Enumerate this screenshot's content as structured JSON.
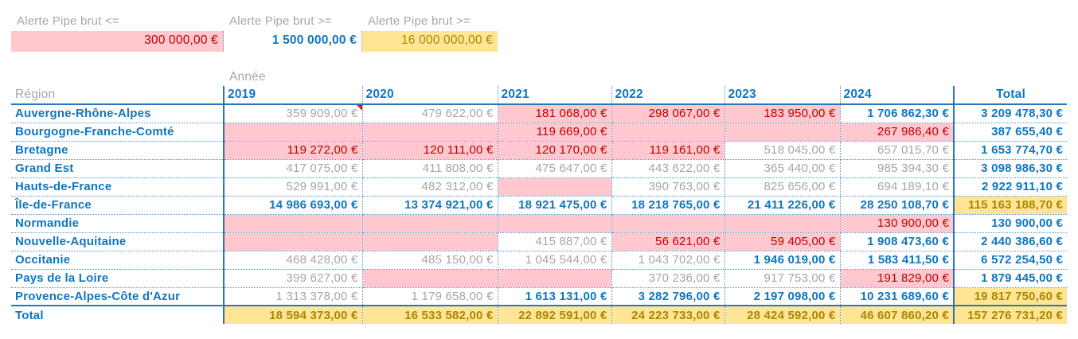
{
  "alerts": [
    {
      "label": "Alerte Pipe brut <=",
      "value": "300 000,00 €"
    },
    {
      "label": "Alerte Pipe brut >=",
      "value": "1 500 000,00 €"
    },
    {
      "label": "Alerte Pipe brut >=",
      "value": "16 000 000,00 €"
    }
  ],
  "table": {
    "group_header": "Année",
    "corner_header": "Région",
    "year_columns": [
      "2019",
      "2020",
      "2021",
      "2022",
      "2023",
      "2024"
    ],
    "total_column": "Total",
    "rows": [
      {
        "region": "Auvergne-Rhône-Alpes",
        "cells": [
          {
            "v": "359 909,00 €",
            "s": "normal",
            "comment": true
          },
          {
            "v": "479 622,00 €",
            "s": "normal"
          },
          {
            "v": "181 068,00 €",
            "s": "bad"
          },
          {
            "v": "298 067,00 €",
            "s": "bad"
          },
          {
            "v": "183 950,00 €",
            "s": "bad"
          },
          {
            "v": "1 706 862,30 €",
            "s": "strong"
          }
        ],
        "total": {
          "v": "3 209 478,30 €",
          "s": "strong"
        }
      },
      {
        "region": "Bourgogne-Franche-Comté",
        "cells": [
          {
            "v": "",
            "s": "bad"
          },
          {
            "v": "",
            "s": "bad"
          },
          {
            "v": "119 669,00 €",
            "s": "bad"
          },
          {
            "v": "",
            "s": "bad"
          },
          {
            "v": "",
            "s": "bad"
          },
          {
            "v": "267 986,40 €",
            "s": "bad"
          }
        ],
        "total": {
          "v": "387 655,40 €",
          "s": "strong"
        }
      },
      {
        "region": "Bretagne",
        "cells": [
          {
            "v": "119 272,00 €",
            "s": "bad"
          },
          {
            "v": "120 111,00 €",
            "s": "bad"
          },
          {
            "v": "120 170,00 €",
            "s": "bad"
          },
          {
            "v": "119 161,00 €",
            "s": "bad"
          },
          {
            "v": "518 045,00 €",
            "s": "normal"
          },
          {
            "v": "657 015,70 €",
            "s": "normal"
          }
        ],
        "total": {
          "v": "1 653 774,70 €",
          "s": "strong"
        }
      },
      {
        "region": "Grand Est",
        "cells": [
          {
            "v": "417 075,00 €",
            "s": "normal"
          },
          {
            "v": "411 808,00 €",
            "s": "normal"
          },
          {
            "v": "475 647,00 €",
            "s": "normal"
          },
          {
            "v": "443 622,00 €",
            "s": "normal"
          },
          {
            "v": "365 440,00 €",
            "s": "normal"
          },
          {
            "v": "985 394,30 €",
            "s": "normal"
          }
        ],
        "total": {
          "v": "3 098 986,30 €",
          "s": "strong"
        }
      },
      {
        "region": "Hauts-de-France",
        "cells": [
          {
            "v": "529 991,00 €",
            "s": "normal"
          },
          {
            "v": "482 312,00 €",
            "s": "normal"
          },
          {
            "v": "",
            "s": "bad"
          },
          {
            "v": "390 763,00 €",
            "s": "normal"
          },
          {
            "v": "825 656,00 €",
            "s": "normal"
          },
          {
            "v": "694 189,10 €",
            "s": "normal"
          }
        ],
        "total": {
          "v": "2 922 911,10 €",
          "s": "strong"
        }
      },
      {
        "region": "Île-de-France",
        "cells": [
          {
            "v": "14 986 693,00 €",
            "s": "strong"
          },
          {
            "v": "13 374 921,00 €",
            "s": "strong"
          },
          {
            "v": "18 921 475,00 €",
            "s": "strong"
          },
          {
            "v": "18 218 765,00 €",
            "s": "strong"
          },
          {
            "v": "21 411 226,00 €",
            "s": "strong"
          },
          {
            "v": "28 250 108,70 €",
            "s": "strong"
          }
        ],
        "total": {
          "v": "115 163 188,70 €",
          "s": "peak"
        }
      },
      {
        "region": "Normandie",
        "cells": [
          {
            "v": "",
            "s": "bad"
          },
          {
            "v": "",
            "s": "bad"
          },
          {
            "v": "",
            "s": "bad"
          },
          {
            "v": "",
            "s": "bad"
          },
          {
            "v": "",
            "s": "bad"
          },
          {
            "v": "130 900,00 €",
            "s": "bad"
          }
        ],
        "total": {
          "v": "130 900,00 €",
          "s": "strong"
        }
      },
      {
        "region": "Nouvelle-Aquitaine",
        "cells": [
          {
            "v": "",
            "s": "bad"
          },
          {
            "v": "",
            "s": "bad"
          },
          {
            "v": "415 887,00 €",
            "s": "normal"
          },
          {
            "v": "56 621,00 €",
            "s": "bad"
          },
          {
            "v": "59 405,00 €",
            "s": "bad"
          },
          {
            "v": "1 908 473,60 €",
            "s": "strong"
          }
        ],
        "total": {
          "v": "2 440 386,60 €",
          "s": "strong"
        }
      },
      {
        "region": "Occitanie",
        "cells": [
          {
            "v": "468 428,00 €",
            "s": "normal"
          },
          {
            "v": "485 150,00 €",
            "s": "normal"
          },
          {
            "v": "1 045 544,00 €",
            "s": "normal"
          },
          {
            "v": "1 043 702,00 €",
            "s": "normal"
          },
          {
            "v": "1 946 019,00 €",
            "s": "strong"
          },
          {
            "v": "1 583 411,50 €",
            "s": "strong"
          }
        ],
        "total": {
          "v": "6 572 254,50 €",
          "s": "strong"
        }
      },
      {
        "region": "Pays de la Loire",
        "cells": [
          {
            "v": "399 627,00 €",
            "s": "normal"
          },
          {
            "v": "",
            "s": "bad"
          },
          {
            "v": "",
            "s": "bad"
          },
          {
            "v": "370 236,00 €",
            "s": "normal"
          },
          {
            "v": "917 753,00 €",
            "s": "normal"
          },
          {
            "v": "191 829,00 €",
            "s": "bad"
          }
        ],
        "total": {
          "v": "1 879 445,00 €",
          "s": "strong"
        }
      },
      {
        "region": "Provence-Alpes-Côte d'Azur",
        "cells": [
          {
            "v": "1 313 378,00 €",
            "s": "normal"
          },
          {
            "v": "1 179 658,00 €",
            "s": "normal"
          },
          {
            "v": "1 613 131,00 €",
            "s": "strong"
          },
          {
            "v": "3 282 796,00 €",
            "s": "strong"
          },
          {
            "v": "2 197 098,00 €",
            "s": "strong"
          },
          {
            "v": "10 231 689,60 €",
            "s": "strong"
          }
        ],
        "total": {
          "v": "19 817 750,60 €",
          "s": "peak"
        }
      }
    ],
    "total_row": {
      "label": "Total",
      "cells": [
        {
          "v": "18 594 373,00 €",
          "s": "peak"
        },
        {
          "v": "16 533 582,00 €",
          "s": "peak"
        },
        {
          "v": "22 892 591,00 €",
          "s": "peak"
        },
        {
          "v": "24 223 733,00 €",
          "s": "peak"
        },
        {
          "v": "28 424 592,00 €",
          "s": "peak"
        },
        {
          "v": "46 607 860,20 €",
          "s": "peak"
        }
      ],
      "total": {
        "v": "157 276 731,20 €",
        "s": "peak"
      }
    }
  },
  "colors": {
    "accent_blue": "#0F76C0",
    "muted_gray": "#A6A6A6",
    "alert_low_bg": "#FFC7CE",
    "alert_low_text": "#C00000",
    "alert_high_bg": "#FFE594",
    "alert_high_text": "#AC8600",
    "border_solid": "#2E75B6",
    "border_dotted": "#4D94D0",
    "comment_flag": "#EE1111"
  }
}
